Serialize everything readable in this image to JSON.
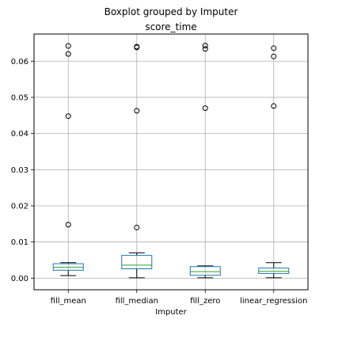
{
  "chart_data": {
    "type": "box",
    "suptitle": "Boxplot grouped by Imputer",
    "title": "score_time",
    "xlabel": "Imputer",
    "ylabel": "",
    "ylim": [
      -0.0032,
      0.0675
    ],
    "yticks": [
      0.0,
      0.01,
      0.02,
      0.03,
      0.04,
      0.05,
      0.06
    ],
    "ytick_labels": [
      "0.00",
      "0.01",
      "0.02",
      "0.03",
      "0.04",
      "0.05",
      "0.06"
    ],
    "grid": true,
    "colors": {
      "box": "#1f77b4",
      "median": "#2ca02c",
      "whisker": "#000000",
      "grid": "#b0b0b0",
      "flier": "#000000"
    },
    "categories": [
      "fill_mean",
      "fill_median",
      "fill_zero",
      "linear_regression"
    ],
    "boxes": [
      {
        "whislo": 0.0007,
        "q1": 0.0022,
        "med": 0.003,
        "q3": 0.004,
        "whishi": 0.0043,
        "fliers": [
          0.0148,
          0.0448,
          0.062,
          0.0642
        ]
      },
      {
        "whislo": 0.0001,
        "q1": 0.0026,
        "med": 0.0036,
        "q3": 0.0063,
        "whishi": 0.007,
        "fliers": [
          0.014,
          0.0463,
          0.0638,
          0.064
        ]
      },
      {
        "whislo": 0.0001,
        "q1": 0.0008,
        "med": 0.0018,
        "q3": 0.0032,
        "whishi": 0.0034,
        "fliers": [
          0.047,
          0.0634,
          0.0643
        ]
      },
      {
        "whislo": 0.0001,
        "q1": 0.0013,
        "med": 0.0019,
        "q3": 0.0028,
        "whishi": 0.0043,
        "fliers": [
          0.0476,
          0.0613,
          0.0636
        ]
      }
    ]
  }
}
